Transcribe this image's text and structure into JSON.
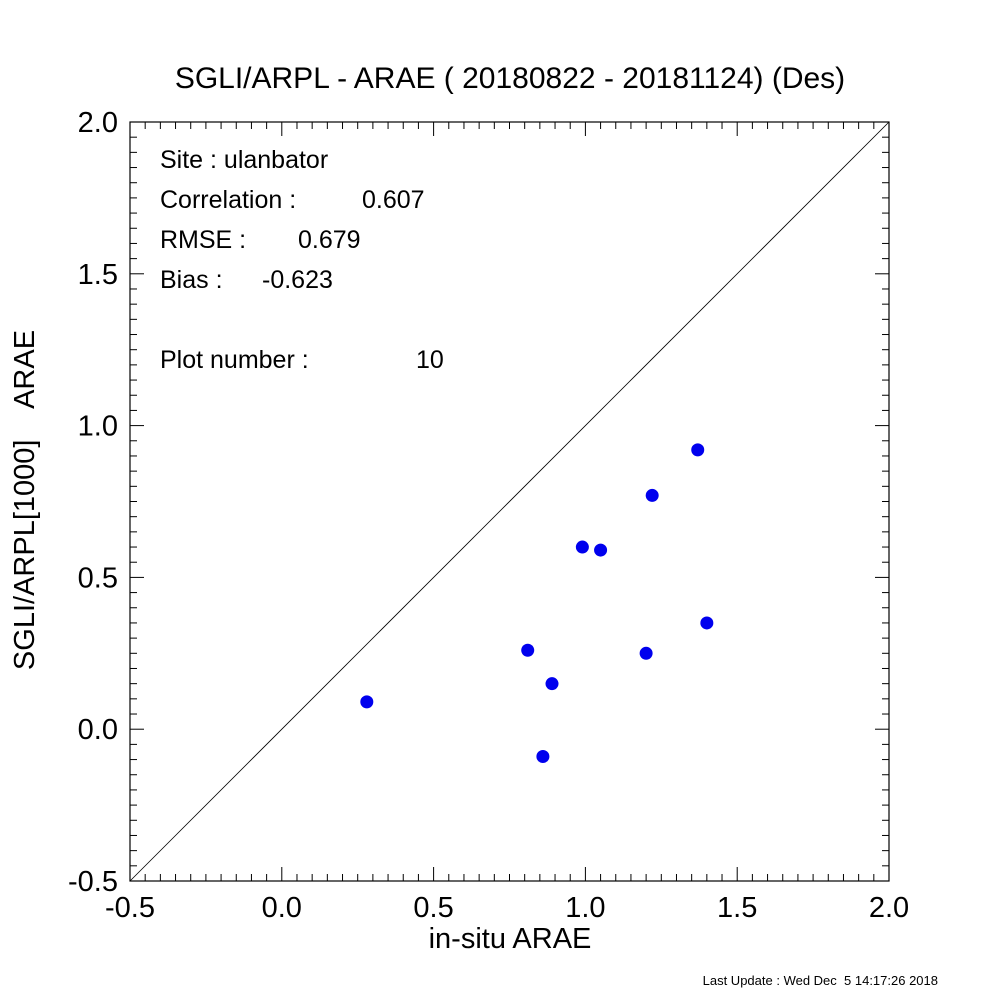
{
  "chart_data": {
    "type": "scatter",
    "title": "SGLI/ARPL - ARAE ( 20180822 - 20181124) (Des)",
    "xlabel": "in-situ ARAE",
    "ylabel": "SGLI/ARPL[1000]    ARAE",
    "xlim": [
      -0.5,
      2.0
    ],
    "ylim": [
      -0.5,
      2.0
    ],
    "xticks": [
      "-0.5",
      "0.0",
      "0.5",
      "1.0",
      "1.5",
      "2.0"
    ],
    "yticks": [
      "-0.5",
      "0.0",
      "0.5",
      "1.0",
      "1.5",
      "2.0"
    ],
    "reference_line": "1:1",
    "marker_color": "#0000ee",
    "points": [
      {
        "x": 0.28,
        "y": 0.09
      },
      {
        "x": 0.81,
        "y": 0.26
      },
      {
        "x": 0.86,
        "y": -0.09
      },
      {
        "x": 0.89,
        "y": 0.15
      },
      {
        "x": 0.99,
        "y": 0.6
      },
      {
        "x": 1.05,
        "y": 0.59
      },
      {
        "x": 1.2,
        "y": 0.25
      },
      {
        "x": 1.22,
        "y": 0.77
      },
      {
        "x": 1.37,
        "y": 0.92
      },
      {
        "x": 1.4,
        "y": 0.35
      }
    ]
  },
  "stats": {
    "site": "Site : ulanbator",
    "correlation_label": "Correlation :",
    "correlation_value": "0.607",
    "rmse_label": "RMSE :",
    "rmse_value": "0.679",
    "bias_label": "Bias :",
    "bias_value": "-0.623",
    "plot_number_label": "Plot number :",
    "plot_number_value": "10"
  },
  "footer": {
    "last_update": "Last Update : Wed Dec  5 14:17:26 2018"
  }
}
